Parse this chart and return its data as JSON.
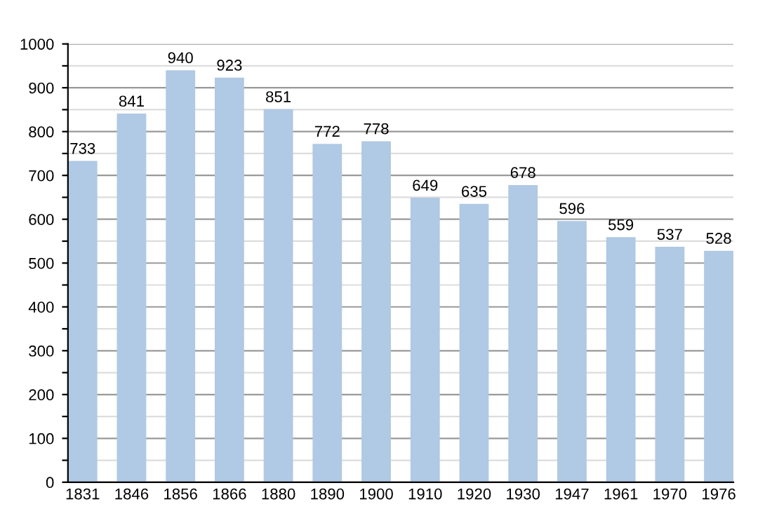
{
  "chart_data": {
    "type": "bar",
    "categories": [
      "1831",
      "1846",
      "1856",
      "1866",
      "1880",
      "1890",
      "1900",
      "1910",
      "1920",
      "1930",
      "1947",
      "1961",
      "1970",
      "1976"
    ],
    "values": [
      733,
      841,
      940,
      923,
      851,
      772,
      778,
      649,
      635,
      678,
      596,
      559,
      537,
      528
    ],
    "color": "#b0c9e4",
    "ylim": [
      0,
      1000
    ],
    "yticks": [
      0,
      {
        "value": 50,
        "label": null
      },
      100,
      {
        "value": 150,
        "label": null
      },
      200,
      {
        "value": 250,
        "label": null
      },
      300,
      {
        "value": 350,
        "label": null
      },
      400,
      {
        "value": 450,
        "label": null
      },
      500,
      {
        "value": 550,
        "label": null
      },
      600,
      {
        "value": 650,
        "label": null
      },
      700,
      {
        "value": 750,
        "label": null
      },
      800,
      {
        "value": 850,
        "label": null
      },
      900,
      {
        "value": 950,
        "label": null
      },
      1000
    ],
    "grid": "y",
    "data_labels": true
  }
}
